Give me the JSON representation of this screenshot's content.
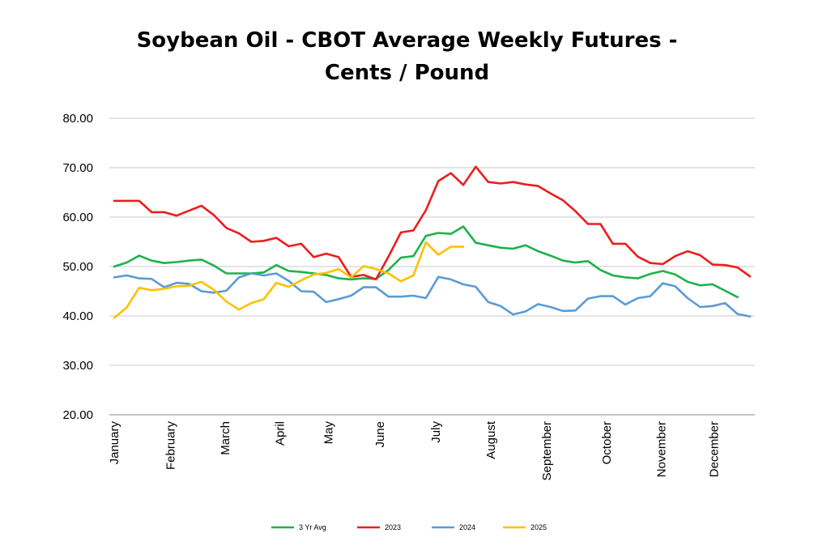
{
  "chart_data": {
    "type": "line",
    "title_line1": "Soybean Oil - CBOT Average Weekly Futures -",
    "title_line2": "Cents / Pound",
    "xlabel": "",
    "ylabel": "",
    "ylim": [
      20,
      80
    ],
    "yticks": [
      "20.00",
      "30.00",
      "40.00",
      "50.00",
      "60.00",
      "70.00",
      "80.00"
    ],
    "grid": true,
    "legend_position": "bottom",
    "month_labels": [
      {
        "label": "January",
        "week": 1
      },
      {
        "label": "February",
        "week": 5.5
      },
      {
        "label": "March",
        "week": 9.9
      },
      {
        "label": "April",
        "week": 14.3
      },
      {
        "label": "May",
        "week": 18.2
      },
      {
        "label": "June",
        "week": 22.3
      },
      {
        "label": "July",
        "week": 26.8
      },
      {
        "label": "August",
        "week": 31.2
      },
      {
        "label": "September",
        "week": 35.7
      },
      {
        "label": "October",
        "week": 40.5
      },
      {
        "label": "November",
        "week": 44.9
      },
      {
        "label": "December",
        "week": 49.1
      }
    ],
    "series": [
      {
        "name": "3 Yr Avg",
        "color": "#1db24b",
        "values": [
          50.0,
          50.8,
          52.2,
          51.2,
          50.7,
          50.9,
          51.2,
          51.4,
          50.2,
          48.6,
          48.6,
          48.6,
          48.8,
          50.3,
          49.1,
          48.9,
          48.6,
          48.3,
          47.6,
          47.4,
          47.6,
          47.5,
          49.3,
          51.8,
          52.1,
          56.2,
          56.8,
          56.6,
          58.1,
          54.8,
          54.3,
          53.8,
          53.6,
          54.3,
          53.1,
          52.2,
          51.2,
          50.8,
          51.1,
          49.3,
          48.2,
          47.8,
          47.6,
          48.5,
          49.1,
          48.4,
          46.9,
          46.2,
          46.4,
          45.1,
          43.8
        ]
      },
      {
        "name": "2023",
        "color": "#ee1c1c",
        "values": [
          63.3,
          63.3,
          63.3,
          61.0,
          61.0,
          60.3,
          61.3,
          62.3,
          60.4,
          57.8,
          56.7,
          55.0,
          55.2,
          55.8,
          54.1,
          54.6,
          51.9,
          52.6,
          51.9,
          47.9,
          48.3,
          47.4,
          52.0,
          56.9,
          57.3,
          61.4,
          67.3,
          68.9,
          66.5,
          70.2,
          67.1,
          66.8,
          67.1,
          66.6,
          66.3,
          64.8,
          63.4,
          61.2,
          58.6,
          58.6,
          54.6,
          54.6,
          52.0,
          50.7,
          50.5,
          52.1,
          53.1,
          52.3,
          50.4,
          50.3,
          49.8,
          48.0
        ]
      },
      {
        "name": "2024",
        "color": "#5b9bd5",
        "values": [
          47.8,
          48.2,
          47.6,
          47.5,
          45.8,
          46.7,
          46.5,
          45.0,
          44.7,
          45.1,
          47.8,
          48.6,
          48.2,
          48.6,
          47.1,
          45.0,
          44.9,
          42.8,
          43.4,
          44.1,
          45.8,
          45.8,
          43.9,
          43.9,
          44.1,
          43.6,
          47.9,
          47.4,
          46.4,
          45.9,
          42.8,
          42.0,
          40.3,
          40.9,
          42.4,
          41.8,
          41.0,
          41.1,
          43.5,
          44.0,
          44.0,
          42.3,
          43.6,
          44.0,
          46.6,
          46.0,
          43.6,
          41.8,
          42.0,
          42.6,
          40.4,
          39.9
        ]
      },
      {
        "name": "2025",
        "color": "#ffc000",
        "values": [
          39.6,
          41.7,
          45.7,
          45.2,
          45.5,
          46.0,
          46.1,
          46.9,
          45.3,
          42.9,
          41.3,
          42.6,
          43.4,
          46.7,
          45.9,
          47.2,
          48.4,
          48.7,
          49.5,
          47.8,
          50.1,
          49.5,
          48.6,
          47.0,
          48.2,
          54.9,
          52.4,
          54.0,
          54.0
        ]
      }
    ]
  }
}
